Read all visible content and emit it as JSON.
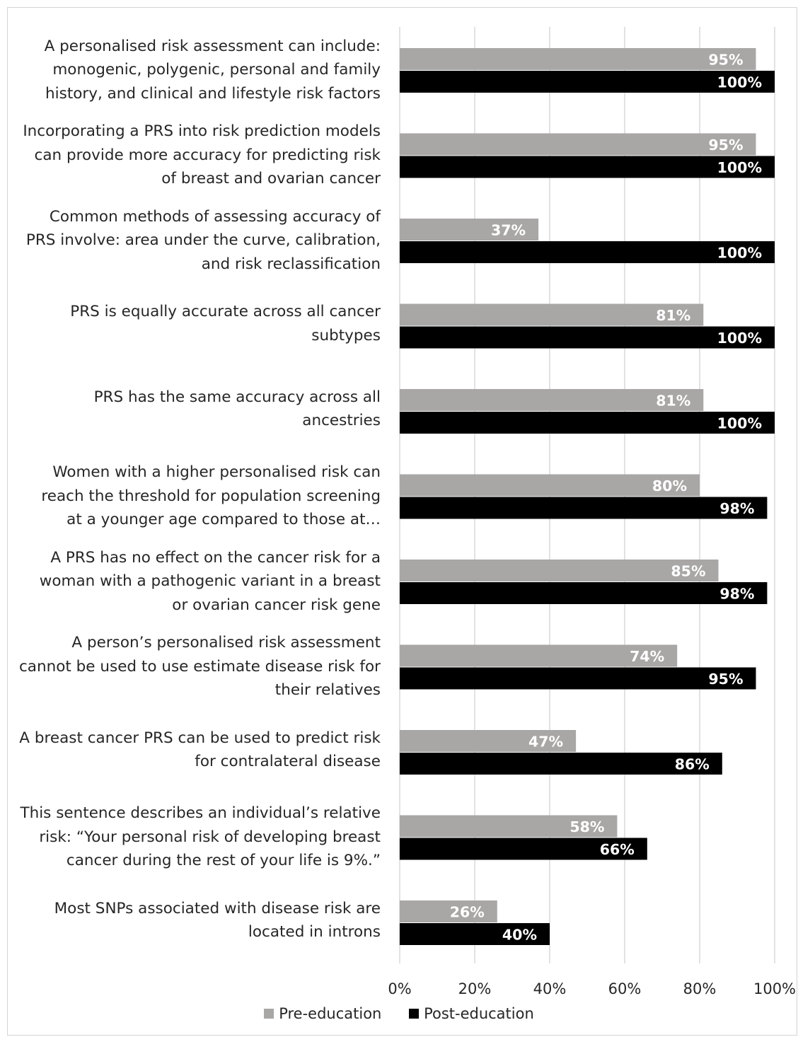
{
  "chart_data": {
    "type": "bar",
    "orientation": "horizontal",
    "categories": [
      "A personalised risk assessment can include:\nmonogenic, polygenic, personal and family\nhistory, and clinical and lifestyle risk factors",
      "Incorporating a PRS into risk prediction models\ncan provide more accuracy for predicting risk\nof breast and ovarian cancer",
      "Common methods of assessing accuracy of\nPRS involve: area under the curve, calibration,\nand risk reclassification",
      "PRS is equally accurate across all cancer\nsubtypes",
      "PRS has the same accuracy across all\nancestries",
      "Women with a higher personalised risk can\nreach the threshold for population screening\nat a younger age compared to those at…",
      "A PRS has no effect on the cancer risk for a\nwoman with a pathogenic variant in a breast\nor ovarian cancer risk gene",
      "A person’s personalised risk assessment\ncannot be used to use estimate disease risk for\ntheir relatives",
      "A breast cancer PRS can be used to predict risk\nfor contralateral disease",
      "This sentence describes an individual’s relative\nrisk: “Your personal risk of developing breast\ncancer during the rest of your life is 9%.”",
      "Most SNPs associated with disease risk are\nlocated in introns"
    ],
    "series": [
      {
        "name": "Pre-education",
        "color": "#a9a6a6",
        "values": [
          95,
          95,
          37,
          81,
          81,
          80,
          85,
          74,
          47,
          58,
          26
        ],
        "labels": [
          "95%",
          "95%",
          "37%",
          "81%",
          "81%",
          "80%",
          "85%",
          "74%",
          "47%",
          "58%",
          "26%"
        ]
      },
      {
        "name": "Post-education",
        "color": "#000000",
        "values": [
          100,
          100,
          100,
          100,
          100,
          98,
          98,
          95,
          86,
          66,
          40
        ],
        "labels": [
          "100%",
          "100%",
          "100%",
          "100%",
          "100%",
          "98%",
          "98%",
          "95%",
          "86%",
          "66%",
          "40%"
        ]
      }
    ],
    "xlim": [
      0,
      100
    ],
    "x_ticks": [
      "0%",
      "20%",
      "40%",
      "60%",
      "80%",
      "100%"
    ],
    "grid": true,
    "legend_position": "bottom"
  }
}
